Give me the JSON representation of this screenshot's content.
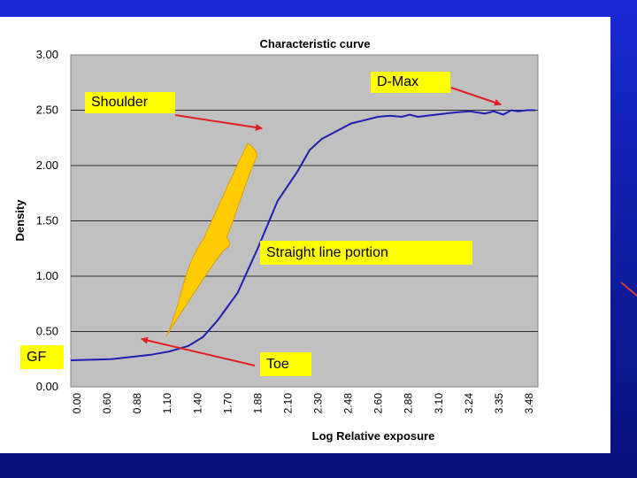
{
  "chart_data": {
    "type": "line",
    "title": "Characteristic curve",
    "xlabel": "Log Relative exposure",
    "ylabel": "Density",
    "ylim": [
      0,
      3
    ],
    "yticks": [
      "0.00",
      "0.50",
      "1.00",
      "1.50",
      "2.00",
      "2.50",
      "3.00"
    ],
    "xticks": [
      "0.00",
      "0.60",
      "0.88",
      "1.10",
      "1.40",
      "1.70",
      "1.88",
      "2.10",
      "2.30",
      "2.48",
      "2.60",
      "2.88",
      "3.10",
      "3.24",
      "3.35",
      "3.48"
    ],
    "grid": true,
    "series": [
      {
        "color": "#1f1fb0",
        "x": [
          0.0,
          0.3,
          0.6,
          0.74,
          0.88,
          0.99,
          1.1,
          1.25,
          1.4,
          1.55,
          1.7,
          1.79,
          1.88,
          1.99,
          2.1,
          2.2,
          2.3,
          2.39,
          2.48,
          2.54,
          2.6,
          2.74,
          2.88,
          2.99,
          3.1,
          3.17,
          3.24,
          3.3,
          3.35,
          3.42,
          3.48
        ],
        "y": [
          0.24,
          0.25,
          0.29,
          0.32,
          0.37,
          0.45,
          0.6,
          0.85,
          1.25,
          1.68,
          1.95,
          2.14,
          2.24,
          2.31,
          2.38,
          2.41,
          2.44,
          2.45,
          2.44,
          2.46,
          2.44,
          2.46,
          2.48,
          2.49,
          2.47,
          2.49,
          2.46,
          2.5,
          2.49,
          2.5,
          2.5
        ]
      }
    ],
    "annotations": [
      {
        "text": "D-Max"
      },
      {
        "text": "Shoulder"
      },
      {
        "text": "Straight line portion"
      },
      {
        "text": "GF"
      },
      {
        "text": "Toe"
      }
    ]
  },
  "colors": {
    "plot_background": "#c0c0c0",
    "line": "#1f1fb0",
    "annotation_fill": "#ffff00",
    "brace_fill": "#ffcc00",
    "arrow": "#e02020"
  }
}
